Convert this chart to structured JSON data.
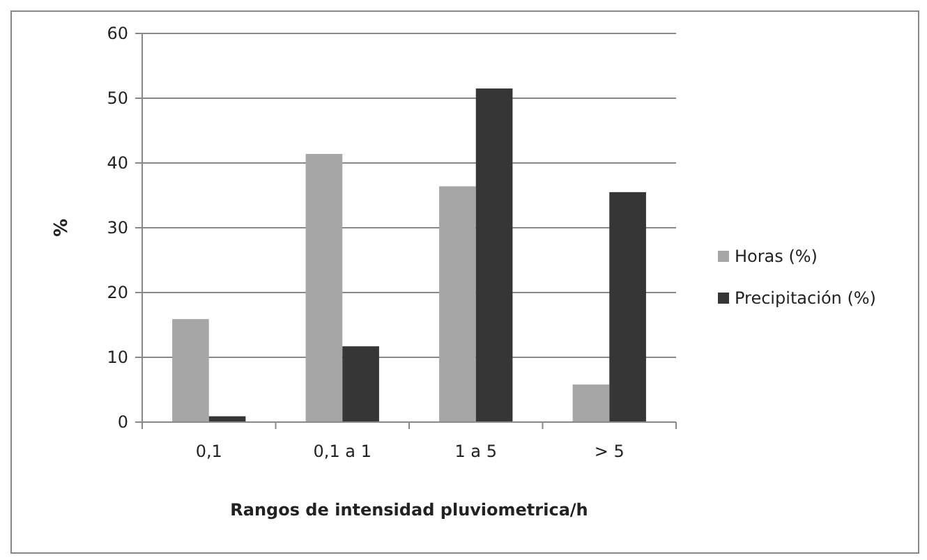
{
  "chart_data": {
    "type": "bar",
    "xlabel": "Rangos de intensidad pluviometrica/h",
    "ylabel": "%",
    "categories": [
      "0,1",
      "0,1 a 1",
      "1 a 5",
      "> 5"
    ],
    "series": [
      {
        "name": "Horas (%)",
        "color": "#a6a6a6",
        "values": [
          15.9,
          41.4,
          36.4,
          5.8
        ]
      },
      {
        "name": "Precipitación (%)",
        "color": "#363636",
        "values": [
          0.9,
          11.7,
          51.5,
          35.5
        ]
      }
    ],
    "ylim": [
      0,
      60
    ],
    "yticks": [
      0,
      10,
      20,
      30,
      40,
      50,
      60
    ],
    "grid": "y",
    "legend": "right"
  }
}
